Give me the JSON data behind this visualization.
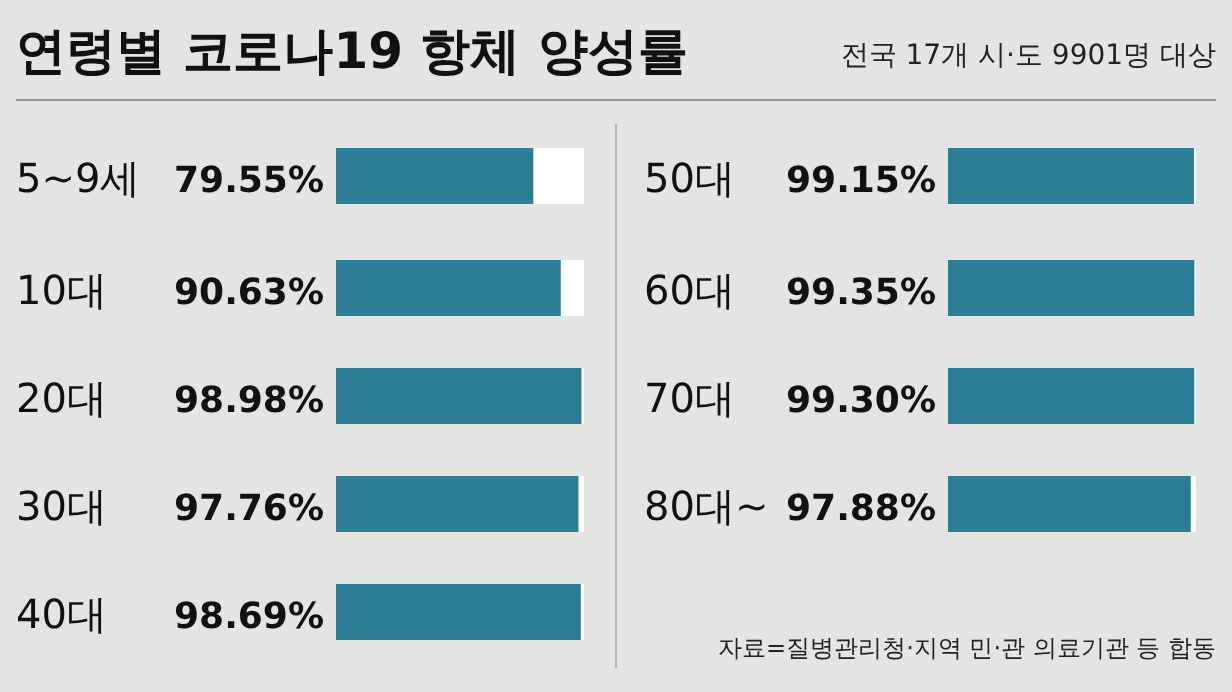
{
  "chart_data": [
    {
      "type": "bar",
      "orientation": "horizontal",
      "title": "연령별 코로나19 항체 양성률",
      "categories": [
        "5~9세",
        "10대",
        "20대",
        "30대",
        "40대"
      ],
      "values": [
        79.55,
        90.63,
        98.98,
        97.76,
        98.69
      ],
      "value_labels": [
        "79.55%",
        "90.63%",
        "98.98%",
        "97.76%",
        "98.69%"
      ],
      "color": "#2b7c95",
      "xlim": [
        0,
        100
      ]
    },
    {
      "type": "bar",
      "orientation": "horizontal",
      "subtitle": "전국 17개 시·도 9901명 대상",
      "categories": [
        "50대",
        "60대",
        "70대",
        "80대~"
      ],
      "values": [
        99.15,
        99.35,
        99.3,
        97.88
      ],
      "value_labels": [
        "99.15%",
        "99.35%",
        "99.30%",
        "97.88%"
      ],
      "color": "#2b7c95",
      "xlim": [
        0,
        100
      ],
      "annotations": [
        "자료=질병관리청·지역 민·관 의료기관 등 합동"
      ]
    }
  ]
}
